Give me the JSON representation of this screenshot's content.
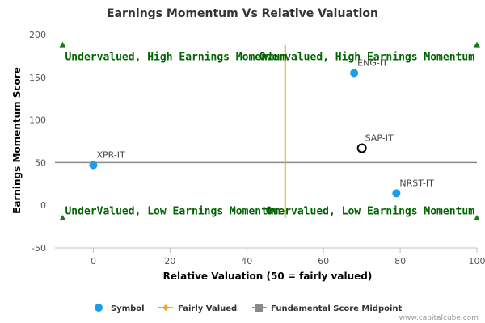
{
  "chart_data": {
    "type": "scatter",
    "title": "Earnings Momentum Vs Relative Valuation",
    "xlabel": "Relative Valuation (50 = fairly valued)",
    "ylabel": "Earnings Momentum Score",
    "xlim": [
      -10,
      100
    ],
    "ylim": [
      -50,
      200
    ],
    "x_ticks": [
      0,
      20,
      40,
      60,
      80,
      100
    ],
    "y_ticks": [
      -50,
      0,
      50,
      100,
      150,
      200
    ],
    "grid": false,
    "legend_position": "bottom",
    "colors": {
      "symbol": "#1a9ee5",
      "fairly_valued": "#f5a623",
      "midpoint": "#8a8a8a",
      "quadrant_text": "#006400",
      "marker": "#1a7a1a"
    },
    "series": [
      {
        "name": "Symbol",
        "points": [
          {
            "label": "ENG-IT",
            "x": 68,
            "y": 155
          },
          {
            "label": "SAP-IT",
            "x": 70,
            "y": 67,
            "highlight": true
          },
          {
            "label": "XPR-IT",
            "x": 0,
            "y": 47
          },
          {
            "label": "NRST-IT",
            "x": 79,
            "y": 14
          }
        ]
      },
      {
        "name": "Fairly Valued",
        "x": 50,
        "y_range": [
          -15,
          188
        ]
      },
      {
        "name": "Fundamental Score Midpoint",
        "y": 50,
        "x_range": [
          -10,
          100
        ]
      }
    ],
    "quadrants": [
      {
        "label": "Undervalued, High Earnings Momentum",
        "x": -8,
        "y": 175,
        "anchor": "start"
      },
      {
        "label": "Overvalued, High Earnings Momentum",
        "x": 100,
        "y": 175,
        "anchor": "end"
      },
      {
        "label": "UnderValued, Low Earnings Momentum",
        "x": -8,
        "y": -6,
        "anchor": "start"
      },
      {
        "label": "Overvalued, Low Earnings Momentum",
        "x": 100,
        "y": -6,
        "anchor": "end"
      }
    ],
    "corner_markers": [
      {
        "x": -8,
        "y": 188,
        "dir": "up"
      },
      {
        "x": 100,
        "y": 188,
        "dir": "up"
      },
      {
        "x": -8,
        "y": -15,
        "dir": "up"
      },
      {
        "x": 100,
        "y": -15,
        "dir": "up"
      }
    ],
    "legend": [
      "Symbol",
      "Fairly Valued",
      "Fundamental Score Midpoint"
    ]
  },
  "credit": "www.capitalcube.com"
}
